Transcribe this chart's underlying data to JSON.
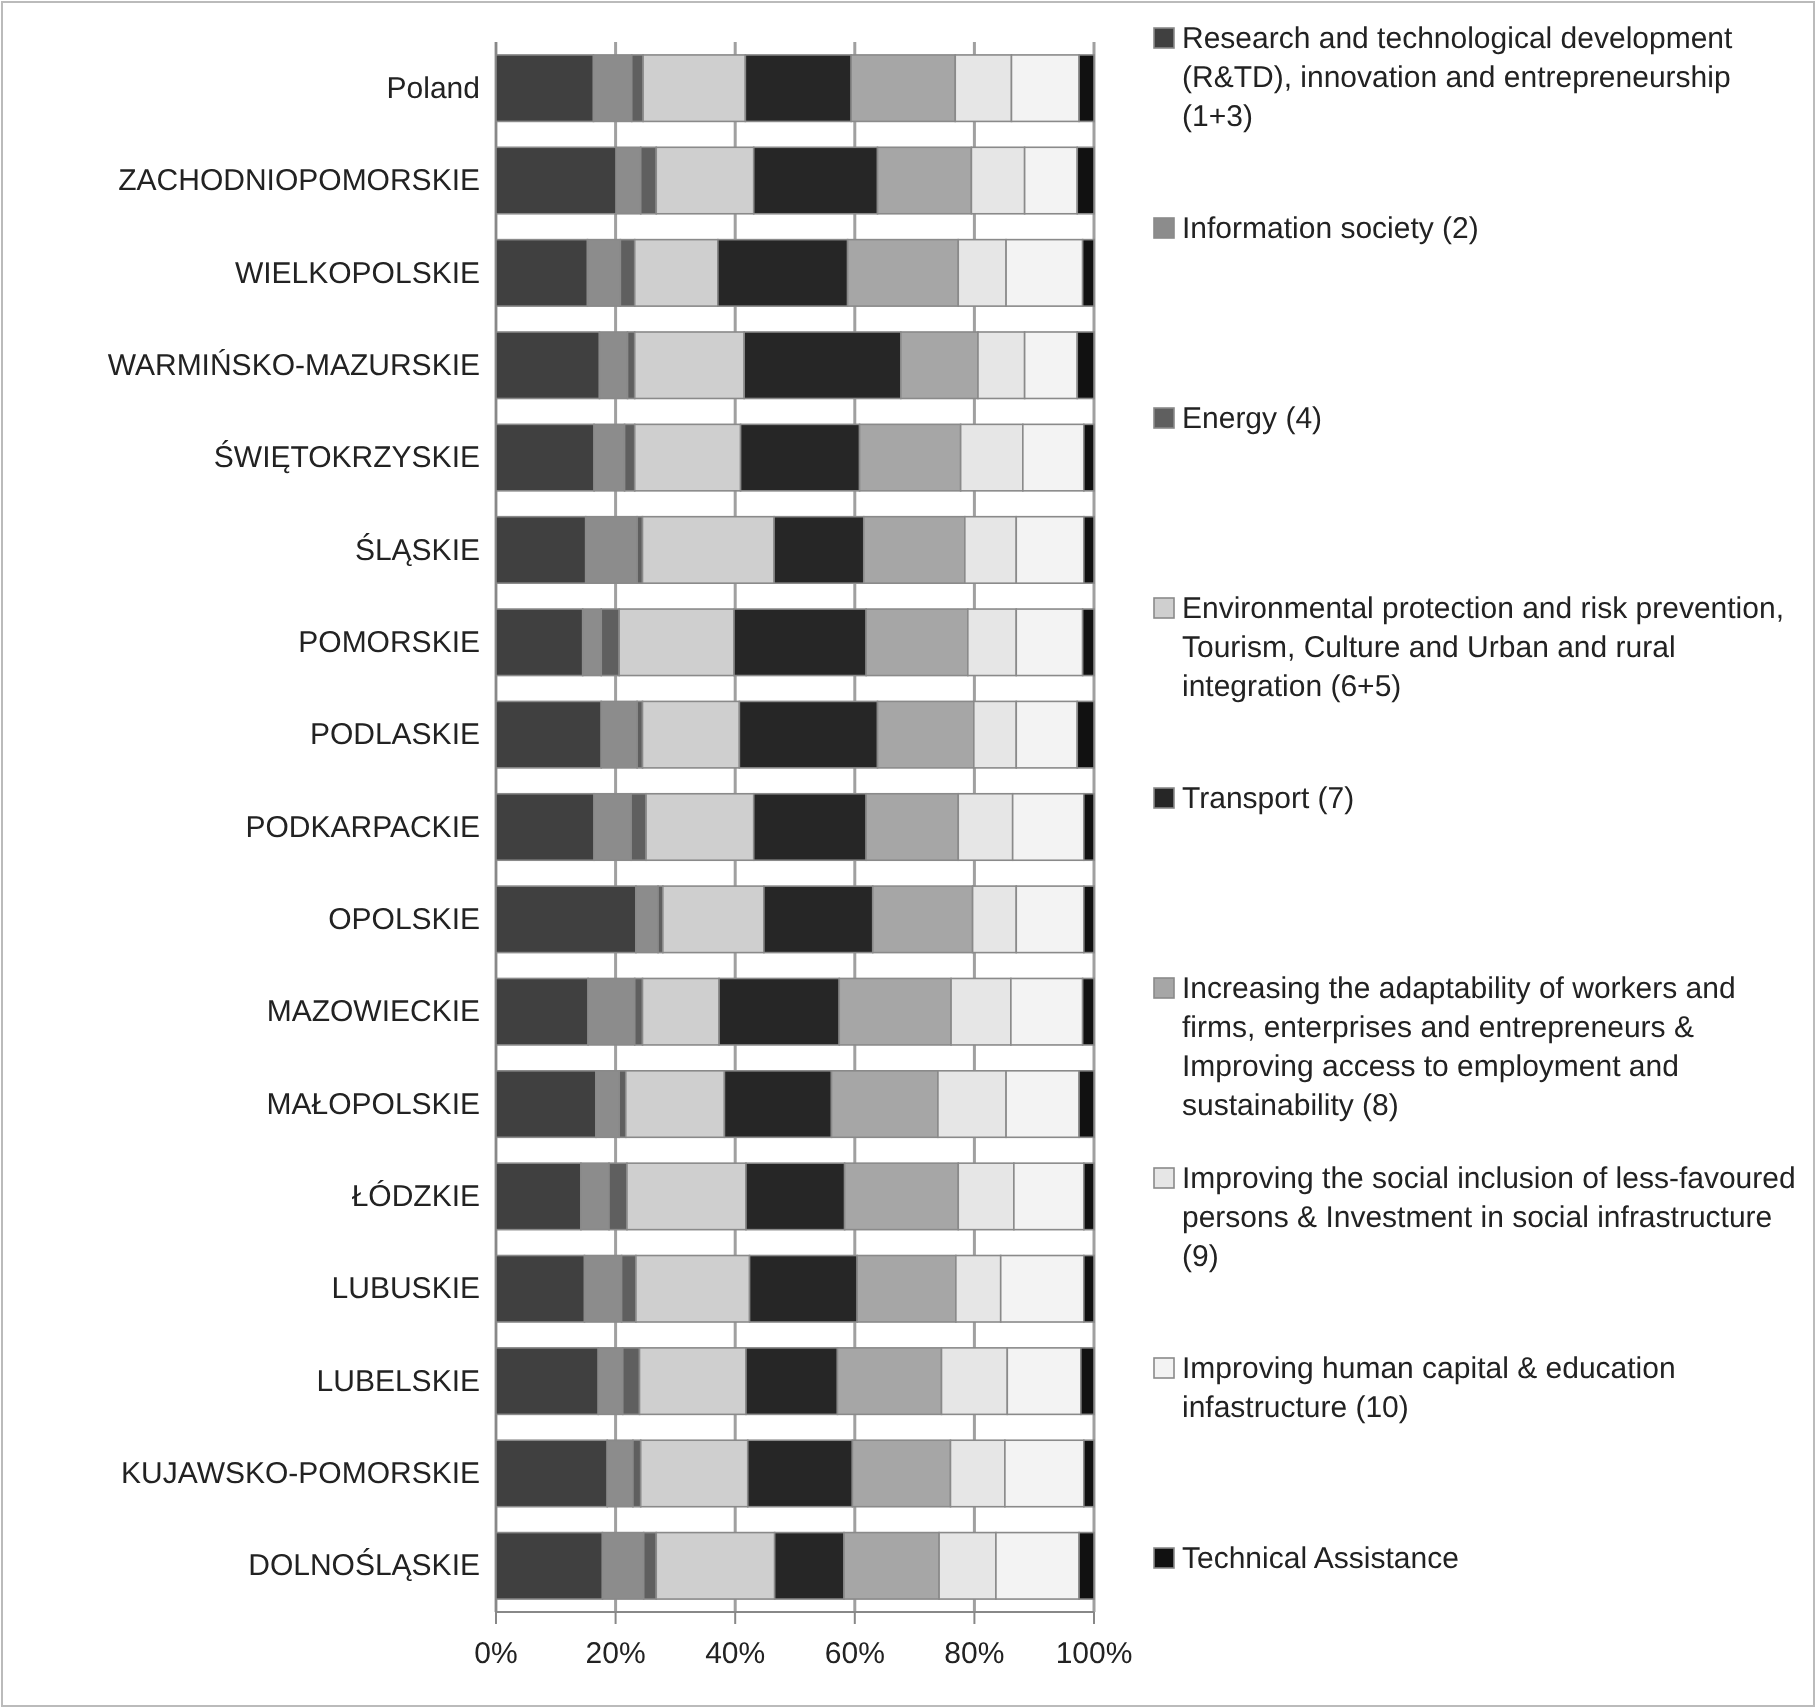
{
  "chart_data": {
    "type": "bar",
    "orientation": "horizontal",
    "stacked": true,
    "categories": [
      "Poland",
      "ZACHODNIOPOMORSKIE",
      "WIELKOPOLSKIE",
      "WARMIŃSKO-MAZURSKIE",
      "ŚWIĘTOKRZYSKIE",
      "ŚLĄSKIE",
      "POMORSKIE",
      "PODLASKIE",
      "PODKARPACKIE",
      "OPOLSKIE",
      "MAZOWIECKIE",
      "MAŁOPOLSKIE",
      "ŁÓDZKIE",
      "LUBUSKIE",
      "LUBELSKIE",
      "KUJAWSKO-POMORSKIE",
      "DOLNOŚLĄSKIE"
    ],
    "series": [
      {
        "name": "Research and technological development (R&TD), innovation and entrepreneurship (1+3)",
        "color": "#404040",
        "values": [
          16.3,
          20.1,
          15.3,
          17.3,
          16.4,
          15.0,
          14.5,
          17.6,
          16.4,
          23.4,
          15.4,
          16.7,
          14.2,
          14.8,
          17.1,
          18.6,
          17.8
        ]
      },
      {
        "name": "Information society (2)",
        "color": "#8c8c8c",
        "values": [
          6.4,
          4.1,
          5.5,
          4.7,
          5.1,
          8.6,
          3.1,
          6.0,
          6.2,
          3.7,
          7.8,
          3.9,
          4.7,
          6.2,
          4.1,
          4.3,
          6.9
        ]
      },
      {
        "name": "Energy (4)",
        "color": "#5f5f5f",
        "values": [
          1.9,
          2.6,
          2.4,
          1.2,
          1.7,
          0.9,
          3.0,
          0.9,
          2.5,
          0.8,
          1.3,
          1.1,
          3.0,
          2.4,
          2.8,
          1.3,
          2.1
        ]
      },
      {
        "name": "Environmental protection and risk prevention, Tourism, Culture and Urban and rural integration  (6+5)",
        "color": "#cfcfcf",
        "values": [
          17.1,
          16.3,
          13.9,
          18.3,
          17.7,
          22.0,
          19.2,
          16.2,
          18.0,
          16.9,
          12.8,
          16.5,
          19.9,
          19.0,
          17.8,
          17.9,
          19.8
        ]
      },
      {
        "name": "Transport (7)",
        "color": "#262626",
        "values": [
          17.7,
          20.7,
          21.7,
          26.2,
          19.9,
          15.0,
          22.1,
          23.1,
          18.8,
          18.2,
          20.1,
          17.9,
          16.5,
          18.0,
          15.3,
          17.5,
          11.6
        ]
      },
      {
        "name": "Increasing the adaptability of workers and firms, enterprises and entrepreneurs & Improving access to employment and sustainability (8)",
        "color": "#a6a6a6",
        "values": [
          17.4,
          15.7,
          18.5,
          12.9,
          16.9,
          16.9,
          17.0,
          16.1,
          15.4,
          16.7,
          18.7,
          17.8,
          19.0,
          16.5,
          17.4,
          16.4,
          15.9
        ]
      },
      {
        "name": "Improving the social inclusion of less-favoured persons & Investment in social infrastructure (9)",
        "color": "#e6e6e6",
        "values": [
          9.4,
          8.9,
          8.0,
          7.8,
          10.4,
          8.6,
          8.1,
          7.1,
          9.1,
          7.3,
          10.0,
          11.4,
          9.3,
          7.5,
          11.0,
          9.1,
          9.5
        ]
      },
      {
        "name": "Improving human capital & education infastructure (10)",
        "color": "#f3f3f3",
        "values": [
          11.3,
          8.8,
          12.8,
          8.8,
          10.2,
          11.3,
          11.1,
          10.2,
          11.9,
          11.3,
          12.0,
          12.2,
          11.7,
          13.9,
          12.3,
          13.2,
          13.9
        ]
      },
      {
        "name": "Technical Assistance",
        "color": "#111111",
        "values": [
          2.5,
          2.8,
          1.9,
          2.8,
          1.7,
          1.7,
          1.9,
          2.8,
          1.7,
          1.7,
          1.9,
          2.5,
          1.7,
          1.7,
          2.2,
          1.7,
          2.5
        ]
      }
    ],
    "xlim": [
      0,
      100
    ],
    "xticks": [
      {
        "value": 0,
        "label": "0%"
      },
      {
        "value": 20,
        "label": "20%"
      },
      {
        "value": 40,
        "label": "40%"
      },
      {
        "value": 60,
        "label": "60%"
      },
      {
        "value": 80,
        "label": "80%"
      },
      {
        "value": 100,
        "label": "100%"
      }
    ],
    "grid": "x",
    "legend": "right"
  }
}
